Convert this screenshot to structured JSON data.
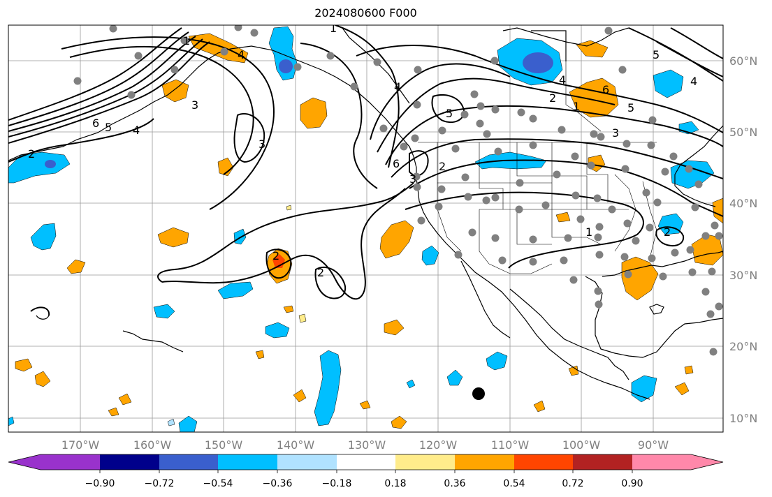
{
  "title": "2024080600 F000",
  "map": {
    "lon_labels": [
      "170°W",
      "160°W",
      "150°W",
      "140°W",
      "130°W",
      "120°W",
      "110°W",
      "100°W",
      "90°W"
    ],
    "lat_labels": [
      "60°N",
      "50°N",
      "40°N",
      "30°N",
      "20°N",
      "10°N"
    ],
    "contour_labels": [
      "1",
      "2",
      "3",
      "4",
      "5",
      "6"
    ],
    "colors": {
      "coast": "#000000",
      "grid": "#999999",
      "stations": "#808080",
      "contours": "#000000"
    }
  },
  "colorbar": {
    "tick_labels": [
      "−0.90",
      "−0.72",
      "−0.54",
      "−0.36",
      "−0.18",
      "0.18",
      "0.36",
      "0.54",
      "0.72",
      "0.90"
    ],
    "colors": [
      "#9932cc",
      "#00008b",
      "#3a5fcd",
      "#00bfff",
      "#b0e2ff",
      "#ffffff",
      "#ffec8b",
      "#ffa500",
      "#ff4500",
      "#b22222",
      "#ff88aa"
    ]
  }
}
